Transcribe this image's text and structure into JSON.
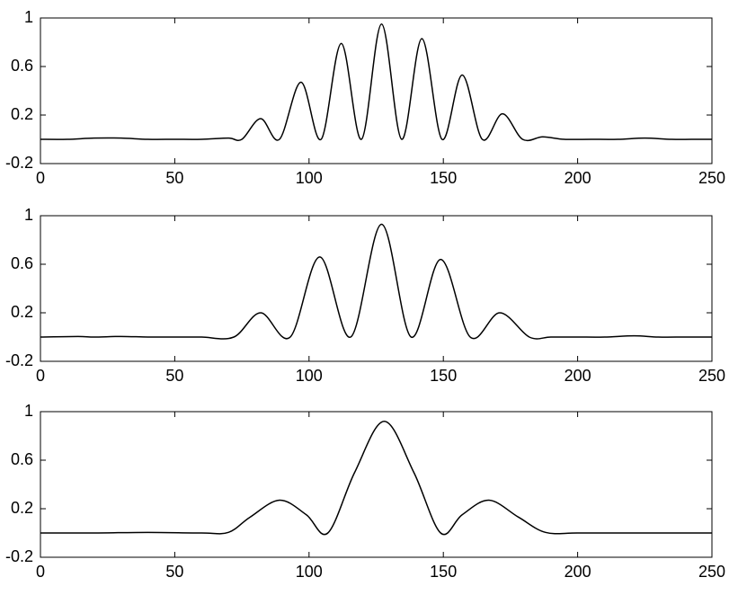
{
  "chart_data": [
    {
      "type": "line",
      "color": "#000000",
      "x": [
        0,
        10,
        20,
        30,
        40,
        50,
        60,
        70,
        75,
        82,
        89,
        97,
        104.5,
        112,
        119.5,
        127,
        134.5,
        142,
        149.5,
        157,
        164.5,
        172,
        179.5,
        187,
        195,
        205,
        215,
        225,
        235,
        245,
        250
      ],
      "values": [
        0,
        0,
        0.01,
        0.01,
        0,
        0,
        0,
        0.01,
        0,
        0.17,
        0,
        0.47,
        0,
        0.79,
        0,
        0.95,
        0,
        0.83,
        0,
        0.53,
        0,
        0.21,
        0,
        0.02,
        0,
        0,
        0,
        0.01,
        0,
        0,
        0
      ],
      "xlim": [
        0,
        250
      ],
      "ylim": [
        -0.2,
        1
      ],
      "xticks": [
        0,
        50,
        100,
        150,
        200,
        250
      ],
      "yticks": [
        -0.2,
        0.2,
        0.6,
        1
      ]
    },
    {
      "type": "line",
      "color": "#000000",
      "x": [
        0,
        14,
        20,
        30,
        40,
        50,
        60,
        72,
        82,
        93,
        104,
        115.5,
        127,
        138,
        149,
        160,
        171,
        182,
        190,
        200,
        210,
        221,
        230,
        240,
        250
      ],
      "values": [
        0,
        0.005,
        0,
        0.005,
        0,
        0,
        0,
        0,
        0.2,
        0,
        0.66,
        0,
        0.93,
        0,
        0.64,
        0,
        0.2,
        0,
        0,
        0,
        0,
        0.01,
        0,
        0,
        0
      ],
      "xlim": [
        0,
        250
      ],
      "ylim": [
        -0.2,
        1
      ],
      "xticks": [
        0,
        50,
        100,
        150,
        200,
        250
      ],
      "yticks": [
        -0.2,
        0.2,
        0.6,
        1
      ]
    },
    {
      "type": "line",
      "color": "#000000",
      "x": [
        0,
        20,
        40,
        60,
        70,
        78,
        89,
        99,
        107,
        117,
        128,
        139,
        149,
        157,
        167,
        178,
        188,
        200,
        220,
        250
      ],
      "values": [
        0,
        0,
        0.005,
        0,
        0.005,
        0.13,
        0.27,
        0.15,
        0,
        0.5,
        0.92,
        0.5,
        0,
        0.15,
        0.27,
        0.13,
        0.005,
        0,
        0,
        0
      ],
      "xlim": [
        0,
        250
      ],
      "ylim": [
        -0.2,
        1
      ],
      "xticks": [
        0,
        50,
        100,
        150,
        200,
        250
      ],
      "yticks": [
        -0.2,
        0.2,
        0.6,
        1
      ]
    }
  ]
}
